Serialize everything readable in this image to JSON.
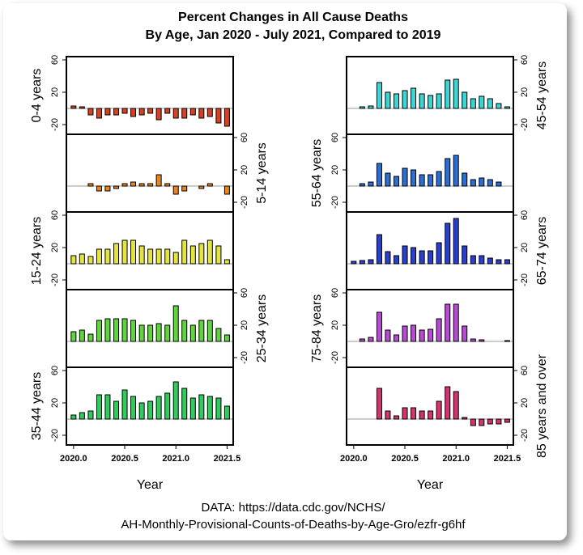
{
  "title": [
    "Percent Changes in All Cause Deaths",
    "By Age, Jan 2020 - July 2021, Compared to 2019"
  ],
  "source": [
    "DATA: https://data.cdc.gov/NCHS/",
    "AH-Monthly-Provisional-Counts-of-Deaths-by-Age-Gro/ezfr-g6hf"
  ],
  "chart_data": [
    {
      "type": "bar",
      "ylabel": "0-4 years",
      "color": "#d8401f",
      "x": [
        2020,
        2020.083,
        2020.167,
        2020.25,
        2020.333,
        2020.417,
        2020.5,
        2020.583,
        2020.667,
        2020.75,
        2020.833,
        2020.917,
        2021,
        2021.083,
        2021.167,
        2021.25,
        2021.333,
        2021.417,
        2021.5
      ],
      "values": [
        3,
        2,
        -8,
        -12,
        -8,
        -8,
        -6,
        -10,
        -8,
        -6,
        -14,
        -6,
        -12,
        -12,
        -8,
        -12,
        -10,
        -18,
        -22
      ],
      "xlim": [
        2019.93,
        2021.56
      ],
      "ylim": [
        -32,
        64
      ],
      "yticks": [
        -20,
        20,
        60
      ]
    },
    {
      "type": "bar",
      "ylabel": "5-14 years",
      "color": "#e8841a",
      "x": [
        2020,
        2020.083,
        2020.167,
        2020.25,
        2020.333,
        2020.417,
        2020.5,
        2020.583,
        2020.667,
        2020.75,
        2020.833,
        2020.917,
        2021,
        2021.083,
        2021.167,
        2021.25,
        2021.333,
        2021.417,
        2021.5
      ],
      "values": [
        0,
        0,
        3,
        -6,
        -6,
        -3,
        3,
        5,
        3,
        3,
        14,
        3,
        -10,
        -6,
        0,
        -3,
        3,
        0,
        -10
      ],
      "xlim": [
        2019.93,
        2021.56
      ],
      "ylim": [
        -32,
        64
      ],
      "yticks": [
        -20,
        20,
        60
      ]
    },
    {
      "type": "bar",
      "ylabel": "15-24 years",
      "color": "#e4e43c",
      "x": [
        2020,
        2020.083,
        2020.167,
        2020.25,
        2020.333,
        2020.417,
        2020.5,
        2020.583,
        2020.667,
        2020.75,
        2020.833,
        2020.917,
        2021,
        2021.083,
        2021.167,
        2021.25,
        2021.333,
        2021.417,
        2021.5
      ],
      "values": [
        10,
        12,
        9,
        18,
        18,
        25,
        29,
        29,
        22,
        18,
        18,
        18,
        14,
        29,
        22,
        25,
        29,
        22,
        5
      ],
      "xlim": [
        2019.93,
        2021.56
      ],
      "ylim": [
        -32,
        64
      ],
      "yticks": [
        -20,
        20,
        60
      ]
    },
    {
      "type": "bar",
      "ylabel": "25-34 years",
      "color": "#5ed63a",
      "x": [
        2020,
        2020.083,
        2020.167,
        2020.25,
        2020.333,
        2020.417,
        2020.5,
        2020.583,
        2020.667,
        2020.75,
        2020.833,
        2020.917,
        2021,
        2021.083,
        2021.167,
        2021.25,
        2021.333,
        2021.417,
        2021.5
      ],
      "values": [
        12,
        14,
        9,
        26,
        28,
        28,
        28,
        26,
        20,
        20,
        22,
        20,
        44,
        26,
        20,
        26,
        26,
        16,
        8
      ],
      "xlim": [
        2019.93,
        2021.56
      ],
      "ylim": [
        -32,
        64
      ],
      "yticks": [
        -20,
        20,
        60
      ]
    },
    {
      "type": "bar",
      "ylabel": "35-44 years",
      "color": "#2ecc5c",
      "x": [
        2020,
        2020.083,
        2020.167,
        2020.25,
        2020.333,
        2020.417,
        2020.5,
        2020.583,
        2020.667,
        2020.75,
        2020.833,
        2020.917,
        2021,
        2021.083,
        2021.167,
        2021.25,
        2021.333,
        2021.417,
        2021.5
      ],
      "values": [
        5,
        8,
        10,
        30,
        30,
        22,
        36,
        28,
        20,
        22,
        28,
        32,
        46,
        38,
        26,
        30,
        28,
        26,
        16
      ],
      "xlim": [
        2019.93,
        2021.56
      ],
      "ylim": [
        -32,
        64
      ],
      "yticks": [
        -20,
        20,
        60
      ],
      "xlabel": "Year",
      "xticks": [
        {
          "value": 2020,
          "label": "2020.0"
        },
        2020.5,
        {
          "value": 2021,
          "label": "2021.0"
        },
        2021.5
      ]
    },
    {
      "type": "bar",
      "ylabel": "45-54 years",
      "color": "#3ad6d6",
      "x": [
        2020,
        2020.083,
        2020.167,
        2020.25,
        2020.333,
        2020.417,
        2020.5,
        2020.583,
        2020.667,
        2020.75,
        2020.833,
        2020.917,
        2021,
        2021.083,
        2021.167,
        2021.25,
        2021.333,
        2021.417,
        2021.5
      ],
      "values": [
        0,
        2,
        3,
        32,
        20,
        18,
        22,
        25,
        18,
        16,
        18,
        35,
        36,
        20,
        12,
        15,
        12,
        6,
        2
      ],
      "xlim": [
        2019.93,
        2021.56
      ],
      "ylim": [
        -32,
        64
      ],
      "yticks": [
        -20,
        20,
        60
      ]
    },
    {
      "type": "bar",
      "ylabel": "55-64 years",
      "color": "#2a6ed6",
      "x": [
        2020,
        2020.083,
        2020.167,
        2020.25,
        2020.333,
        2020.417,
        2020.5,
        2020.583,
        2020.667,
        2020.75,
        2020.833,
        2020.917,
        2021,
        2021.083,
        2021.167,
        2021.25,
        2021.333,
        2021.417,
        2021.5
      ],
      "values": [
        0,
        3,
        5,
        28,
        16,
        12,
        22,
        20,
        14,
        14,
        18,
        34,
        38,
        16,
        8,
        10,
        8,
        5,
        0
      ],
      "xlim": [
        2019.93,
        2021.56
      ],
      "ylim": [
        -32,
        64
      ],
      "yticks": [
        -20,
        20,
        60
      ]
    },
    {
      "type": "bar",
      "ylabel": "65-74 years",
      "color": "#2a3ed0",
      "x": [
        2020,
        2020.083,
        2020.167,
        2020.25,
        2020.333,
        2020.417,
        2020.5,
        2020.583,
        2020.667,
        2020.75,
        2020.833,
        2020.917,
        2021,
        2021.083,
        2021.167,
        2021.25,
        2021.333,
        2021.417,
        2021.5
      ],
      "values": [
        3,
        4,
        5,
        36,
        15,
        10,
        22,
        20,
        16,
        16,
        26,
        50,
        56,
        22,
        10,
        10,
        7,
        5,
        5
      ],
      "xlim": [
        2019.93,
        2021.56
      ],
      "ylim": [
        -32,
        64
      ],
      "yticks": [
        -20,
        20,
        60
      ]
    },
    {
      "type": "bar",
      "ylabel": "75-84 years",
      "color": "#b84ad6",
      "x": [
        2020,
        2020.083,
        2020.167,
        2020.25,
        2020.333,
        2020.417,
        2020.5,
        2020.583,
        2020.667,
        2020.75,
        2020.833,
        2020.917,
        2021,
        2021.083,
        2021.167,
        2021.25,
        2021.333,
        2021.417,
        2021.5
      ],
      "values": [
        0,
        3,
        5,
        36,
        14,
        8,
        19,
        20,
        14,
        15,
        28,
        46,
        46,
        19,
        3,
        2,
        0,
        0,
        1
      ],
      "xlim": [
        2019.93,
        2021.56
      ],
      "ylim": [
        -32,
        64
      ],
      "yticks": [
        -20,
        20,
        60
      ]
    },
    {
      "type": "bar",
      "ylabel": "85 years and over",
      "color": "#d6336e",
      "x": [
        2020,
        2020.083,
        2020.167,
        2020.25,
        2020.333,
        2020.417,
        2020.5,
        2020.583,
        2020.667,
        2020.75,
        2020.833,
        2020.917,
        2021,
        2021.083,
        2021.167,
        2021.25,
        2021.333,
        2021.417,
        2021.5
      ],
      "values": [
        0,
        0,
        0,
        38,
        10,
        4,
        14,
        14,
        10,
        10,
        22,
        40,
        34,
        2,
        -8,
        -8,
        -6,
        -6,
        -4
      ],
      "xlim": [
        2019.93,
        2021.56
      ],
      "ylim": [
        -32,
        64
      ],
      "yticks": [
        -20,
        20,
        60
      ],
      "xlabel": "Year",
      "xticks": [
        {
          "value": 2020,
          "label": "2020.0"
        },
        2020.5,
        {
          "value": 2021,
          "label": "2021.0"
        },
        2021.5
      ]
    }
  ]
}
